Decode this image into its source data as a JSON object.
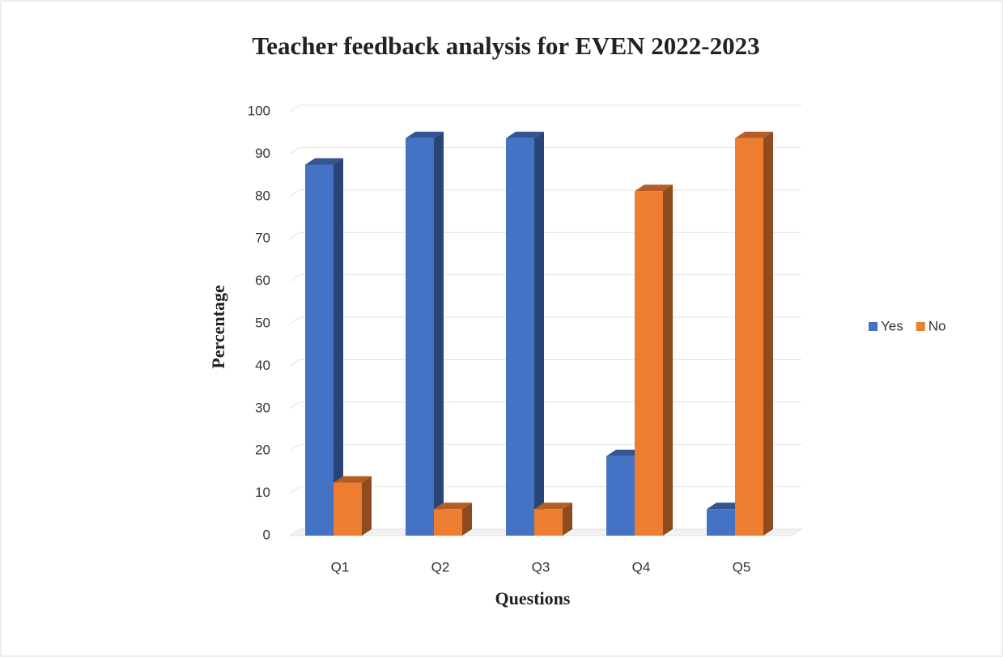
{
  "chart_data": {
    "type": "bar3d",
    "title": "Teacher feedback analysis for EVEN 2022-2023",
    "x_label": "Questions",
    "y_label": "Percentage",
    "categories": [
      "Q1",
      "Q2",
      "Q3",
      "Q4",
      "Q5"
    ],
    "series": [
      {
        "name": "Yes",
        "color": "#4472c4",
        "values": [
          87.5,
          93.75,
          93.75,
          18.75,
          6.25
        ]
      },
      {
        "name": "No",
        "color": "#ed7d31",
        "values": [
          12.5,
          6.25,
          6.25,
          81.25,
          93.75
        ]
      }
    ],
    "ylim": [
      0,
      100
    ],
    "yticks": [
      0,
      10,
      20,
      30,
      40,
      50,
      60,
      70,
      80,
      90,
      100
    ],
    "grid": true,
    "legend": "right"
  }
}
